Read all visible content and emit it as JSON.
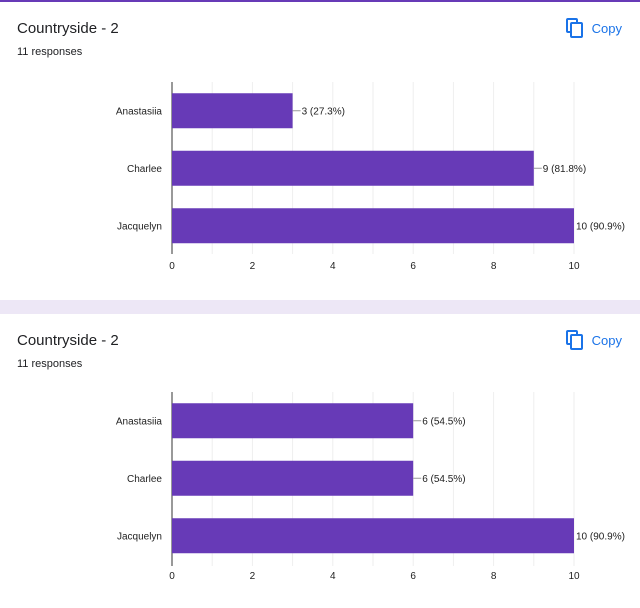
{
  "cards": [
    {
      "title": "Countryside - 2",
      "responses": "11 responses",
      "copy_label": "Copy"
    },
    {
      "title": "Countryside - 2",
      "responses": "11 responses",
      "copy_label": "Copy"
    }
  ],
  "colors": {
    "bar": "#673ab7",
    "accent": "#1a73e8",
    "grid": "#eeeeee",
    "axis": "#333333",
    "page_bg": "#ede7f6"
  },
  "icons": {
    "copy": "copy-icon"
  },
  "chart_data": [
    {
      "type": "bar",
      "orientation": "horizontal",
      "categories": [
        "Anastasiia",
        "Charlee",
        "Jacquelyn"
      ],
      "values": [
        3,
        9,
        10
      ],
      "labels": [
        "3 (27.3%)",
        "9 (81.8%)",
        "10 (90.9%)"
      ],
      "xlim": [
        0,
        10
      ],
      "xticks": [
        0,
        2,
        4,
        6,
        8,
        10
      ],
      "grid": true
    },
    {
      "type": "bar",
      "orientation": "horizontal",
      "categories": [
        "Anastasiia",
        "Charlee",
        "Jacquelyn"
      ],
      "values": [
        6,
        6,
        10
      ],
      "labels": [
        "6 (54.5%)",
        "6 (54.5%)",
        "10 (90.9%)"
      ],
      "xlim": [
        0,
        10
      ],
      "xticks": [
        0,
        2,
        4,
        6,
        8,
        10
      ],
      "grid": true
    }
  ]
}
